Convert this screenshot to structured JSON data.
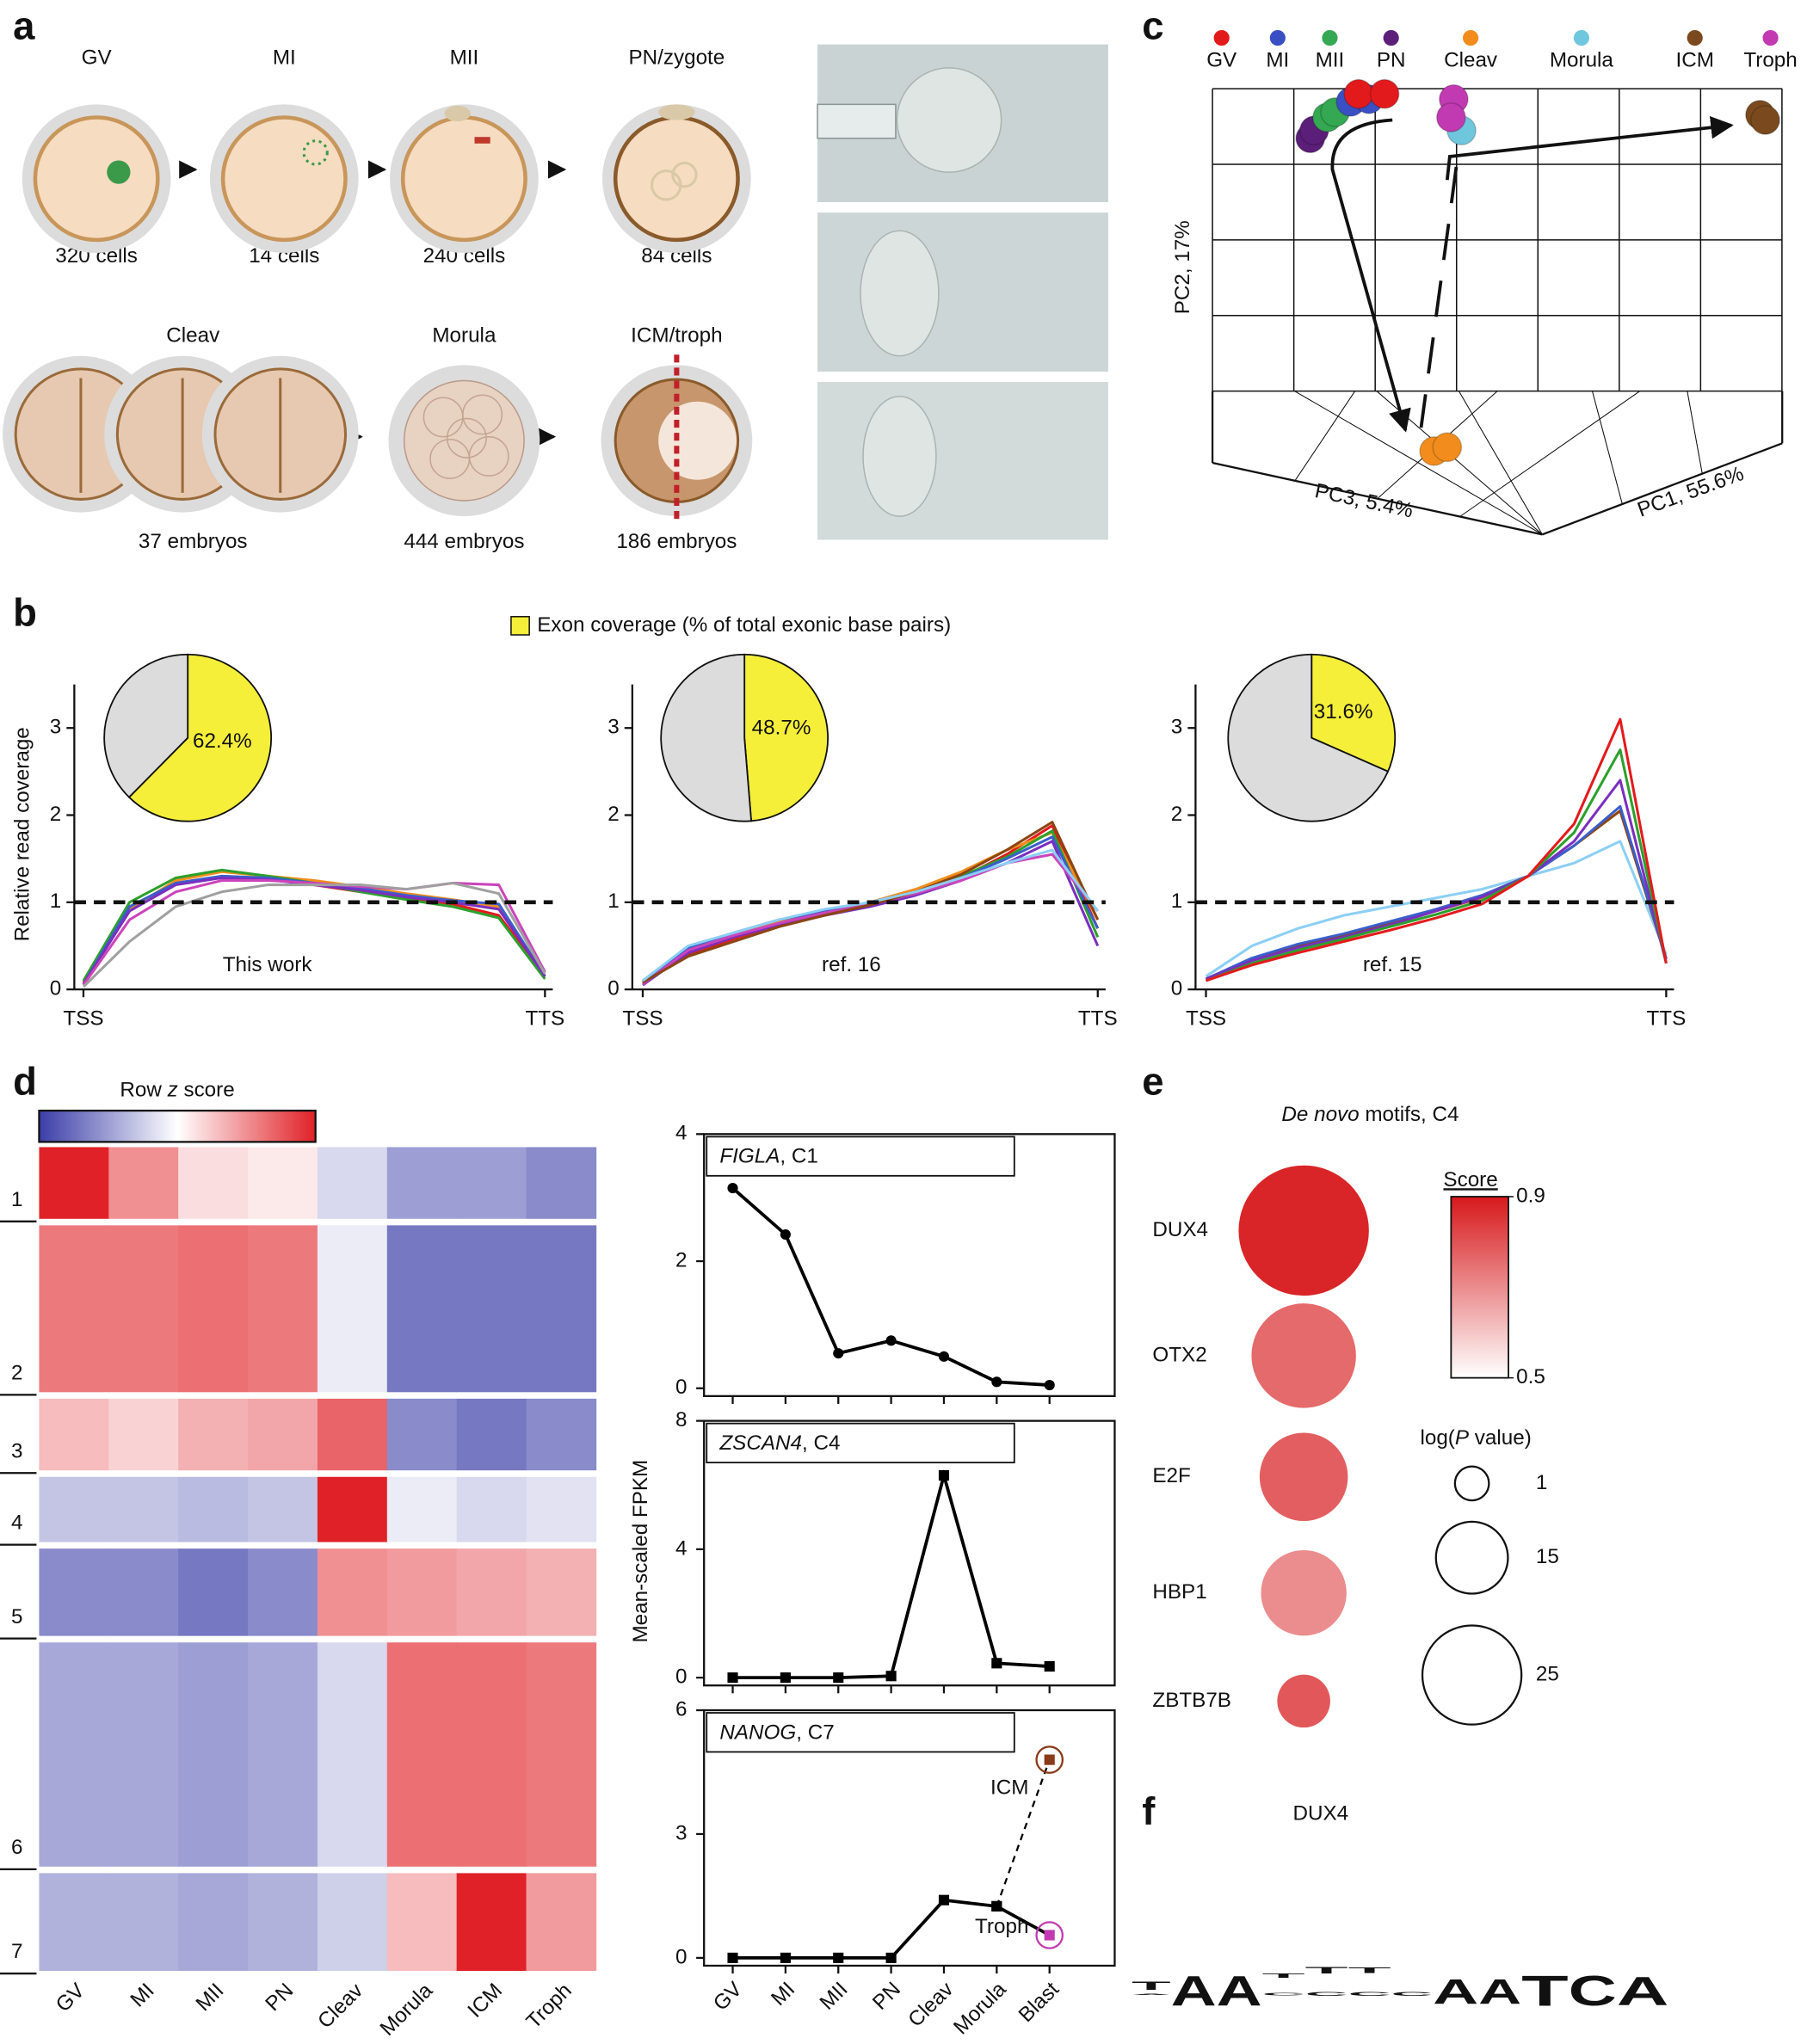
{
  "panel_labels": {
    "a": "a",
    "b": "b",
    "c": "c",
    "d": "d",
    "e": "e",
    "f": "f"
  },
  "panel_a": {
    "top": [
      {
        "label": "GV",
        "count": "320 cells"
      },
      {
        "label": "MI",
        "count": "14 cells"
      },
      {
        "label": "MII",
        "count": "240 cells"
      },
      {
        "label": "PN/zygote",
        "count": "84 cells"
      }
    ],
    "bottom": [
      {
        "label": "Cleav",
        "count": "37 embryos"
      },
      {
        "label": "Morula",
        "count": "444 embryos"
      },
      {
        "label": "ICM/troph",
        "count": "186 embryos"
      }
    ]
  },
  "panel_c": {
    "legend": [
      {
        "name": "GV",
        "color": "#e31a1c"
      },
      {
        "name": "MI",
        "color": "#3b4fc4"
      },
      {
        "name": "MII",
        "color": "#34a853"
      },
      {
        "name": "PN",
        "color": "#5b1f7a"
      },
      {
        "name": "Cleav",
        "color": "#f28c1c"
      },
      {
        "name": "Morula",
        "color": "#6fc7dd"
      },
      {
        "name": "ICM",
        "color": "#7a4a1e"
      },
      {
        "name": "Troph",
        "color": "#c23ab2"
      }
    ],
    "pc1": "PC1, 55.6%",
    "pc2": "PC2, 17%",
    "pc3": "PC3, 5.4%"
  },
  "chart_data": [
    {
      "type": "coverage",
      "legend": "Exon coverage (% of total exonic base pairs)",
      "legend_color": "#f5ef3a",
      "ylabel": "Relative read coverage",
      "panels": [
        {
          "annotation": "This work",
          "categories": [
            "TSS",
            null,
            null,
            null,
            null,
            null,
            null,
            null,
            null,
            null,
            "TTS"
          ],
          "ylim": [
            0,
            3.5
          ],
          "yticks": [
            0,
            1,
            2,
            3
          ],
          "hline": 1,
          "pie": {
            "values": [
              62.4,
              37.6
            ],
            "value_labels": [
              "62.4%",
              null
            ],
            "colors": [
              "#f5ef3a",
              "#dcdcdc"
            ]
          },
          "series": [
            {
              "color": "#e41a1c",
              "values": [
                0.08,
                0.9,
                1.22,
                1.3,
                1.27,
                1.2,
                1.12,
                1.05,
                0.98,
                0.85,
                0.15
              ]
            },
            {
              "color": "#f28e1c",
              "values": [
                0.06,
                0.92,
                1.25,
                1.35,
                1.3,
                1.25,
                1.18,
                1.1,
                1.03,
                0.95,
                0.15
              ]
            },
            {
              "color": "#2ca02c",
              "values": [
                0.1,
                1.0,
                1.28,
                1.37,
                1.3,
                1.22,
                1.12,
                1.03,
                0.95,
                0.82,
                0.12
              ]
            },
            {
              "color": "#3a5fcd",
              "values": [
                0.06,
                0.95,
                1.22,
                1.3,
                1.28,
                1.22,
                1.16,
                1.08,
                1.02,
                0.98,
                0.15
              ]
            },
            {
              "color": "#7b2fbf",
              "values": [
                0.06,
                0.9,
                1.2,
                1.28,
                1.26,
                1.2,
                1.14,
                1.06,
                1.0,
                0.92,
                0.15
              ]
            },
            {
              "color": "#cc44bb",
              "values": [
                0.05,
                0.8,
                1.12,
                1.25,
                1.25,
                1.22,
                1.18,
                1.15,
                1.22,
                1.2,
                0.2
              ]
            },
            {
              "color": "#a0a0a0",
              "values": [
                0.03,
                0.55,
                0.95,
                1.12,
                1.2,
                1.2,
                1.2,
                1.15,
                1.22,
                1.1,
                0.18
              ]
            }
          ]
        },
        {
          "annotation": "ref. 16",
          "categories": [
            "TSS",
            null,
            null,
            null,
            null,
            null,
            null,
            null,
            null,
            null,
            "TTS"
          ],
          "ylim": [
            0,
            3.5
          ],
          "yticks": [
            0,
            1,
            2,
            3
          ],
          "hline": 1,
          "pie": {
            "values": [
              48.7,
              51.3
            ],
            "value_labels": [
              "48.7%",
              null
            ],
            "colors": [
              "#f5ef3a",
              "#dcdcdc"
            ]
          },
          "series": [
            {
              "color": "#e41a1c",
              "values": [
                0.08,
                0.4,
                0.58,
                0.75,
                0.88,
                0.98,
                1.1,
                1.28,
                1.55,
                1.88,
                0.7
              ]
            },
            {
              "color": "#f28e1c",
              "values": [
                0.1,
                0.45,
                0.62,
                0.78,
                0.9,
                1.0,
                1.15,
                1.35,
                1.6,
                1.8,
                0.8
              ]
            },
            {
              "color": "#2ca02c",
              "values": [
                0.1,
                0.42,
                0.6,
                0.75,
                0.85,
                0.97,
                1.1,
                1.3,
                1.52,
                1.82,
                0.6
              ]
            },
            {
              "color": "#3a5fcd",
              "values": [
                0.08,
                0.48,
                0.65,
                0.8,
                0.9,
                1.0,
                1.12,
                1.28,
                1.5,
                1.75,
                0.7
              ]
            },
            {
              "color": "#7b2fbf",
              "values": [
                0.05,
                0.42,
                0.6,
                0.74,
                0.85,
                0.95,
                1.08,
                1.25,
                1.45,
                1.7,
                0.5
              ]
            },
            {
              "color": "#cc44bb",
              "values": [
                0.06,
                0.45,
                0.62,
                0.76,
                0.88,
                0.98,
                1.1,
                1.25,
                1.45,
                1.55,
                0.9
              ]
            },
            {
              "color": "#8b4513",
              "values": [
                0.08,
                0.38,
                0.55,
                0.72,
                0.85,
                0.97,
                1.12,
                1.32,
                1.6,
                1.92,
                0.8
              ]
            },
            {
              "color": "#8ccff5",
              "values": [
                0.1,
                0.5,
                0.65,
                0.8,
                0.92,
                1.0,
                1.12,
                1.28,
                1.45,
                1.6,
                0.9
              ]
            }
          ]
        },
        {
          "annotation": "ref. 15",
          "categories": [
            "TSS",
            null,
            null,
            null,
            null,
            null,
            null,
            null,
            null,
            null,
            "TTS"
          ],
          "ylim": [
            0,
            3.5
          ],
          "yticks": [
            0,
            1,
            2,
            3
          ],
          "hline": 1,
          "pie": {
            "values": [
              31.6,
              68.4
            ],
            "value_labels": [
              "31.6%",
              null
            ],
            "colors": [
              "#f5ef3a",
              "#dcdcdc"
            ]
          },
          "series": [
            {
              "color": "#8ccff5",
              "values": [
                0.15,
                0.5,
                0.7,
                0.85,
                0.95,
                1.05,
                1.15,
                1.3,
                1.45,
                1.7,
                0.4
              ]
            },
            {
              "color": "#f28e1c",
              "values": [
                0.12,
                0.35,
                0.5,
                0.62,
                0.75,
                0.9,
                1.05,
                1.3,
                1.65,
                2.05,
                0.35
              ]
            },
            {
              "color": "#8b4513",
              "values": [
                0.12,
                0.35,
                0.5,
                0.62,
                0.76,
                0.92,
                1.08,
                1.3,
                1.65,
                2.05,
                0.35
              ]
            },
            {
              "color": "#3a5fcd",
              "values": [
                0.12,
                0.36,
                0.52,
                0.64,
                0.78,
                0.92,
                1.08,
                1.3,
                1.65,
                2.1,
                0.35
              ]
            },
            {
              "color": "#7b2fbf",
              "values": [
                0.12,
                0.33,
                0.48,
                0.6,
                0.74,
                0.9,
                1.06,
                1.3,
                1.7,
                2.4,
                0.3
              ]
            },
            {
              "color": "#2ca02c",
              "values": [
                0.1,
                0.3,
                0.45,
                0.58,
                0.72,
                0.86,
                1.02,
                1.3,
                1.8,
                2.75,
                0.3
              ]
            },
            {
              "color": "#e41a1c",
              "values": [
                0.1,
                0.28,
                0.42,
                0.55,
                0.68,
                0.82,
                0.98,
                1.3,
                1.9,
                3.1,
                0.3
              ]
            }
          ]
        }
      ]
    },
    {
      "type": "heatmap",
      "colorbar_parts": [
        "Row ",
        "z",
        " score"
      ],
      "italic_part": 1,
      "columns": [
        "GV",
        "MI",
        "MII",
        "PN",
        "Cleav",
        "Morula",
        "ICM",
        "Troph"
      ],
      "rows": [
        "1",
        "2",
        "3",
        "4",
        "5",
        "6",
        "7"
      ],
      "zlim": [
        -1,
        1
      ],
      "colors": [
        "#3b3ea8",
        "#ffffff",
        "#e02127"
      ],
      "values": [
        [
          1.0,
          0.5,
          0.15,
          0.1,
          -0.2,
          -0.5,
          -0.5,
          -0.6
        ],
        [
          0.6,
          0.6,
          0.65,
          0.6,
          -0.1,
          -0.7,
          -0.7,
          -0.7
        ],
        [
          0.3,
          0.2,
          0.35,
          0.4,
          0.7,
          -0.6,
          -0.7,
          -0.6
        ],
        [
          -0.3,
          -0.3,
          -0.35,
          -0.3,
          1.0,
          -0.1,
          -0.2,
          -0.15
        ],
        [
          -0.6,
          -0.6,
          -0.7,
          -0.6,
          0.5,
          0.45,
          0.4,
          0.35
        ],
        [
          -0.45,
          -0.45,
          -0.5,
          -0.45,
          -0.2,
          0.65,
          0.65,
          0.6
        ],
        [
          -0.4,
          -0.4,
          -0.45,
          -0.4,
          -0.25,
          0.3,
          1.0,
          0.45
        ]
      ]
    },
    {
      "type": "line_stack",
      "ylabel": "Mean-scaled FPKM",
      "categories": [
        "GV",
        "MI",
        "MII",
        "PN",
        "Cleav",
        "Morula",
        "Blast"
      ],
      "panels": [
        {
          "title_parts": [
            "FIGLA",
            ", C1"
          ],
          "italic_part": 0,
          "ylim": [
            0,
            4
          ],
          "yticks": [
            0,
            2,
            4
          ],
          "marker": "circle",
          "series": [
            {
              "color": "#000000",
              "values": [
                3.15,
                2.42,
                0.55,
                0.75,
                0.5,
                0.1,
                0.05
              ]
            }
          ]
        },
        {
          "title_parts": [
            "ZSCAN4",
            ", C4"
          ],
          "italic_part": 0,
          "ylim": [
            0,
            8
          ],
          "yticks": [
            0,
            4,
            8
          ],
          "marker": "square",
          "series": [
            {
              "color": "#000000",
              "values": [
                0,
                0,
                0,
                0.05,
                6.3,
                0.45,
                0.35
              ]
            }
          ]
        },
        {
          "title_parts": [
            "NANOG",
            ", C7"
          ],
          "italic_part": 0,
          "ylim": [
            0,
            6
          ],
          "yticks": [
            0,
            3,
            6
          ],
          "marker": "square",
          "series": [
            {
              "name": "Troph",
              "color": "#000000",
              "label_color": "#c23ab2",
              "values": [
                0,
                0,
                0,
                0,
                1.4,
                1.25,
                0.55
              ]
            },
            {
              "name": "ICM",
              "color": "#000000",
              "label_color": "#8b3a1a",
              "dash": true,
              "values": [
                null,
                null,
                null,
                null,
                null,
                1.25,
                4.8
              ]
            }
          ]
        }
      ]
    },
    {
      "type": "bubble",
      "title_parts": [
        "De novo",
        " motifs, C4"
      ],
      "italic_part": 0,
      "categories": [
        "DUX4",
        "OTX2",
        "E2F",
        "HBP1",
        "ZBTB7B"
      ],
      "values": [
        0.88,
        0.76,
        0.78,
        0.7,
        0.79
      ],
      "sizes": [
        36.5,
        27,
        21,
        20,
        8
      ],
      "zlim": [
        0.5,
        0.9
      ],
      "zticks": [
        0.5,
        0.9
      ],
      "score_label": "Score",
      "colors": [
        "#ffffff",
        "#d7191c"
      ],
      "size_label_parts": [
        "log(",
        "P",
        " value)"
      ],
      "size_italic_part": 1,
      "size_ticks": [
        1,
        15,
        25
      ]
    },
    {
      "type": "logo",
      "title": "DUX4",
      "columns": [
        [
          "T",
          "A"
        ],
        [
          "A"
        ],
        [
          "A"
        ],
        [
          "T",
          "C"
        ],
        [
          "T",
          "C"
        ],
        [
          "T",
          "C"
        ],
        [
          "C"
        ],
        [
          "A"
        ],
        [
          "A"
        ],
        [
          "T"
        ],
        [
          "C"
        ],
        [
          "A"
        ]
      ],
      "letter_colors": {
        "A": "#7dc242",
        "T": "#e2231a",
        "C": "#2d5fb4"
      }
    }
  ]
}
